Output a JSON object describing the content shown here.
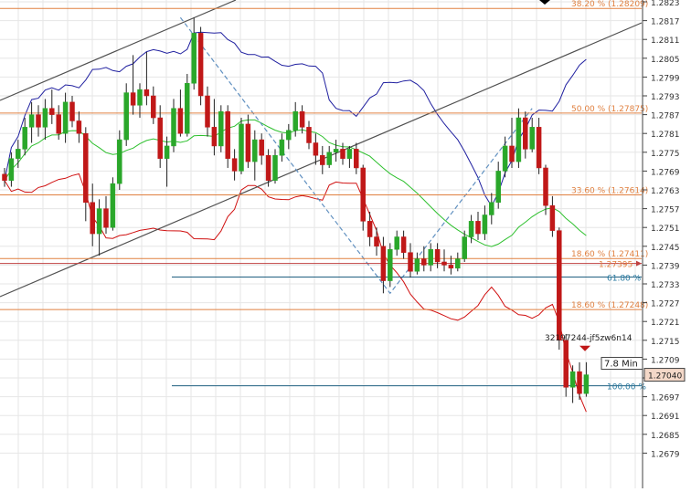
{
  "chart_data": {
    "type": "candlestick",
    "title": "",
    "xlabel": "",
    "ylabel": "",
    "ylim": [
      1.2673,
      1.2823
    ],
    "y_ticks": [
      "1.2823",
      "1.2817",
      "1.2811",
      "1.2805",
      "1.2799",
      "1.2793",
      "1.2787",
      "1.2781",
      "1.2775",
      "1.2769",
      "1.2763",
      "1.2757",
      "1.2751",
      "1.2745",
      "1.2739",
      "1.2733",
      "1.2727",
      "1.2721",
      "1.2715",
      "1.2709",
      "1.2703",
      "1.2697",
      "1.2691",
      "1.2685",
      "1.2679"
    ],
    "grid": true,
    "fib_levels": [
      {
        "label": "38.20 % (1.28209)",
        "value": 1.28209
      },
      {
        "label": "50.00 % (1.27875)",
        "value": 1.27875
      },
      {
        "label": "33.60 % (1.27614)",
        "value": 1.27614
      },
      {
        "label": "18.60 % (1.27411)",
        "value": 1.27411
      },
      {
        "label": "18.60 % (1.27248)",
        "value": 1.27248
      }
    ],
    "blue_levels": [
      {
        "label": "61.80 %",
        "value": 1.27352
      },
      {
        "label": "100.00 %",
        "value": 1.27005
      }
    ],
    "price_line": {
      "label": "1.27395",
      "value": 1.27395
    },
    "current_price": {
      "label": "1.27040",
      "value": 1.2704
    },
    "countdown": "7.8 Min",
    "order_label": "32197244-jf5zw6n14",
    "colors": {
      "up": "#2aa72a",
      "down": "#c01818",
      "upper_band": "#2020a0",
      "lower_band": "#d01010",
      "mid_band": "#2ec02e",
      "fib": "#e08040",
      "blue_level": "#1f5f80",
      "channel": "#505050",
      "zigzag": "#6090c0"
    },
    "series": [
      {
        "name": "candles",
        "values": [
          [
            1.2768,
            1.277,
            1.2764,
            1.2766
          ],
          [
            1.2766,
            1.2775,
            1.2764,
            1.2773
          ],
          [
            1.2773,
            1.2779,
            1.277,
            1.2776
          ],
          [
            1.2776,
            1.2786,
            1.2774,
            1.2783
          ],
          [
            1.2783,
            1.2791,
            1.2778,
            1.2787
          ],
          [
            1.2787,
            1.279,
            1.278,
            1.2783
          ],
          [
            1.2783,
            1.2792,
            1.2779,
            1.2789
          ],
          [
            1.2789,
            1.2795,
            1.2784,
            1.2787
          ],
          [
            1.2787,
            1.279,
            1.2779,
            1.2781
          ],
          [
            1.2781,
            1.2794,
            1.2778,
            1.2791
          ],
          [
            1.2791,
            1.2793,
            1.2783,
            1.2785
          ],
          [
            1.2785,
            1.2788,
            1.2778,
            1.2781
          ],
          [
            1.2781,
            1.2783,
            1.2753,
            1.2759
          ],
          [
            1.2759,
            1.2765,
            1.2745,
            1.2749
          ],
          [
            1.2749,
            1.276,
            1.2742,
            1.2757
          ],
          [
            1.2757,
            1.2761,
            1.2749,
            1.2751
          ],
          [
            1.2751,
            1.2767,
            1.275,
            1.2765
          ],
          [
            1.2765,
            1.2782,
            1.2763,
            1.2779
          ],
          [
            1.2779,
            1.2797,
            1.2777,
            1.2794
          ],
          [
            1.2794,
            1.2806,
            1.2787,
            1.279
          ],
          [
            1.279,
            1.2797,
            1.2786,
            1.2795
          ],
          [
            1.2795,
            1.2807,
            1.279,
            1.2793
          ],
          [
            1.2793,
            1.2796,
            1.2784,
            1.2786
          ],
          [
            1.2786,
            1.279,
            1.277,
            1.2773
          ],
          [
            1.2773,
            1.278,
            1.2764,
            1.2777
          ],
          [
            1.2777,
            1.2792,
            1.2775,
            1.2789
          ],
          [
            1.2789,
            1.2795,
            1.278,
            1.2781
          ],
          [
            1.2781,
            1.28,
            1.278,
            1.2797
          ],
          [
            1.2797,
            1.2818,
            1.2795,
            1.2813
          ],
          [
            1.2813,
            1.2815,
            1.279,
            1.2793
          ],
          [
            1.2793,
            1.2796,
            1.278,
            1.2783
          ],
          [
            1.2783,
            1.2792,
            1.2774,
            1.2777
          ],
          [
            1.2777,
            1.279,
            1.2775,
            1.2788
          ],
          [
            1.2788,
            1.279,
            1.277,
            1.2773
          ],
          [
            1.2773,
            1.2776,
            1.2766,
            1.2769
          ],
          [
            1.2769,
            1.2786,
            1.2768,
            1.2784
          ],
          [
            1.2784,
            1.2787,
            1.277,
            1.2772
          ],
          [
            1.2772,
            1.2782,
            1.2766,
            1.2779
          ],
          [
            1.2779,
            1.2781,
            1.2771,
            1.2774
          ],
          [
            1.2774,
            1.2776,
            1.2764,
            1.2766
          ],
          [
            1.2766,
            1.2776,
            1.2765,
            1.2774
          ],
          [
            1.2774,
            1.2781,
            1.2772,
            1.2779
          ],
          [
            1.2779,
            1.2784,
            1.2776,
            1.2782
          ],
          [
            1.2782,
            1.2791,
            1.278,
            1.2788
          ],
          [
            1.2788,
            1.279,
            1.2781,
            1.2783
          ],
          [
            1.2783,
            1.2785,
            1.2776,
            1.2778
          ],
          [
            1.2778,
            1.2781,
            1.2771,
            1.2774
          ],
          [
            1.2774,
            1.2777,
            1.2768,
            1.2771
          ],
          [
            1.2771,
            1.2777,
            1.277,
            1.2775
          ],
          [
            1.2775,
            1.2779,
            1.2772,
            1.2776
          ],
          [
            1.2776,
            1.2778,
            1.2771,
            1.2773
          ],
          [
            1.2773,
            1.2777,
            1.277,
            1.2776
          ],
          [
            1.2776,
            1.2778,
            1.2768,
            1.277
          ],
          [
            1.277,
            1.2771,
            1.275,
            1.2753
          ],
          [
            1.2753,
            1.2756,
            1.2745,
            1.2748
          ],
          [
            1.2748,
            1.2751,
            1.2742,
            1.2745
          ],
          [
            1.2745,
            1.2748,
            1.273,
            1.2734
          ],
          [
            1.2734,
            1.2746,
            1.2732,
            1.2744
          ],
          [
            1.2744,
            1.275,
            1.2742,
            1.2748
          ],
          [
            1.2748,
            1.275,
            1.2741,
            1.2743
          ],
          [
            1.2743,
            1.2746,
            1.2735,
            1.2737
          ],
          [
            1.2737,
            1.2743,
            1.2736,
            1.2741
          ],
          [
            1.2741,
            1.2745,
            1.2737,
            1.2739
          ],
          [
            1.2739,
            1.2746,
            1.2737,
            1.2744
          ],
          [
            1.2744,
            1.2746,
            1.2738,
            1.274
          ],
          [
            1.274,
            1.2744,
            1.2737,
            1.2739
          ],
          [
            1.2739,
            1.2742,
            1.2736,
            1.2738
          ],
          [
            1.2738,
            1.2743,
            1.2737,
            1.2741
          ],
          [
            1.2741,
            1.275,
            1.274,
            1.2748
          ],
          [
            1.2748,
            1.2755,
            1.2746,
            1.2753
          ],
          [
            1.2753,
            1.2756,
            1.2747,
            1.2749
          ],
          [
            1.2749,
            1.2758,
            1.2747,
            1.2755
          ],
          [
            1.2755,
            1.2762,
            1.2752,
            1.2759
          ],
          [
            1.2759,
            1.2772,
            1.2757,
            1.2769
          ],
          [
            1.2769,
            1.278,
            1.2767,
            1.2777
          ],
          [
            1.2777,
            1.2786,
            1.277,
            1.2772
          ],
          [
            1.2772,
            1.2789,
            1.277,
            1.2786
          ],
          [
            1.2786,
            1.2788,
            1.2773,
            1.2776
          ],
          [
            1.2776,
            1.2786,
            1.2775,
            1.2783
          ],
          [
            1.2783,
            1.2786,
            1.2768,
            1.277
          ],
          [
            1.277,
            1.2771,
            1.2755,
            1.2758
          ],
          [
            1.2758,
            1.2761,
            1.2748,
            1.275
          ],
          [
            1.275,
            1.2751,
            1.2712,
            1.2715
          ],
          [
            1.2715,
            1.2717,
            1.2697,
            1.27
          ],
          [
            1.27,
            1.2707,
            1.2695,
            1.2705
          ],
          [
            1.2705,
            1.2708,
            1.2696,
            1.2698
          ],
          [
            1.2698,
            1.2708,
            1.2697,
            1.2704
          ]
        ]
      }
    ]
  }
}
